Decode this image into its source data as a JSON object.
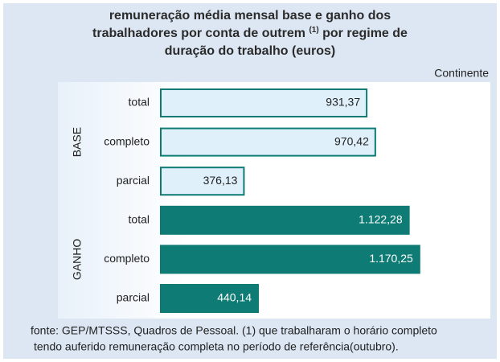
{
  "chart_data": {
    "type": "bar",
    "title": [
      "remuneração média mensal base e ganho dos",
      "trabalhadores por conta de outrem",
      "(1)",
      "por regime de",
      "duração do trabalho (euros)"
    ],
    "subtitle": "Continente",
    "series": [
      {
        "name": "BASE",
        "color": "#dff0fb",
        "border": "#0e7c74",
        "label_color": "#222222",
        "categories": [
          "total",
          "completo",
          "parcial"
        ],
        "values": [
          931.37,
          970.42,
          376.13
        ],
        "value_labels": [
          "931,37",
          "970,42",
          "376,13"
        ]
      },
      {
        "name": "GANHO",
        "color": "#0e7c74",
        "border": "#0e7c74",
        "label_color": "#ffffff",
        "categories": [
          "total",
          "completo",
          "parcial"
        ],
        "values": [
          1122.28,
          1170.25,
          440.14
        ],
        "value_labels": [
          "1.122,28",
          "1.170,25",
          "440,14"
        ]
      }
    ],
    "footnote": [
      "fonte: GEP/MTSSS, Quadros de Pessoal.  (1) que trabalharam o horário completo",
      "tendo auferido remuneração completa no período de referência(outubro)."
    ]
  }
}
